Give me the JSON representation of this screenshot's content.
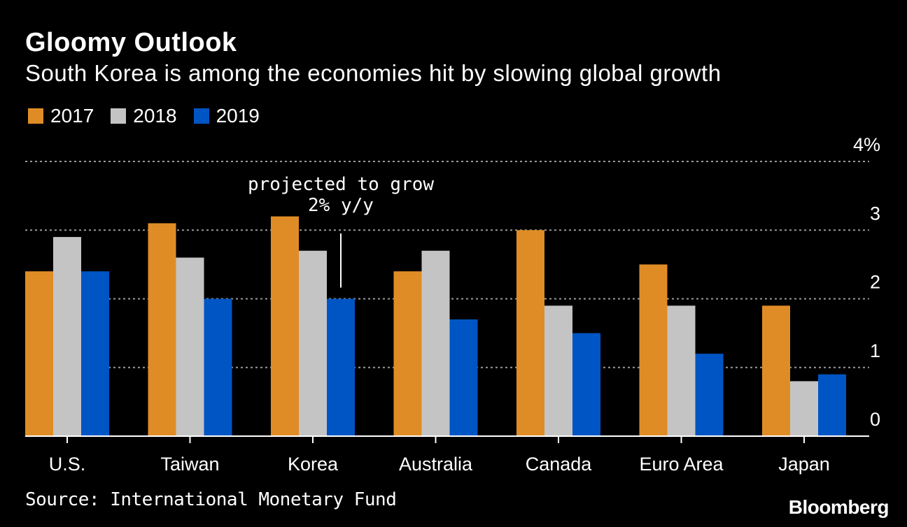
{
  "title": "Gloomy Outlook",
  "subtitle": "South Korea is among the economies hit by slowing global growth",
  "source": "Source: International Monetary Fund",
  "brand": "Bloomberg",
  "chart_data": {
    "type": "bar",
    "categories": [
      "U.S.",
      "Taiwan",
      "Korea",
      "Australia",
      "Canada",
      "Euro Area",
      "Japan"
    ],
    "series": [
      {
        "name": "2017",
        "color": "#e08c26",
        "values": [
          2.4,
          3.1,
          3.2,
          2.4,
          3.0,
          2.5,
          1.9
        ]
      },
      {
        "name": "2018",
        "color": "#c4c4c4",
        "values": [
          2.9,
          2.6,
          2.7,
          2.7,
          1.9,
          1.9,
          0.8
        ]
      },
      {
        "name": "2019",
        "color": "#0055c4",
        "values": [
          2.4,
          2.0,
          2.0,
          1.7,
          1.5,
          1.2,
          0.9
        ]
      }
    ],
    "ylim": [
      0,
      4
    ],
    "yticks": [
      {
        "value": 0,
        "label": "0"
      },
      {
        "value": 1,
        "label": "1"
      },
      {
        "value": 2,
        "label": "2"
      },
      {
        "value": 3,
        "label": "3"
      },
      {
        "value": 4,
        "label": "4%"
      }
    ],
    "annotation": {
      "category": "Korea",
      "series": "2019",
      "lines": [
        "projected to grow",
        "2% y/y"
      ]
    },
    "legend_position": "top-left",
    "grid": true
  }
}
